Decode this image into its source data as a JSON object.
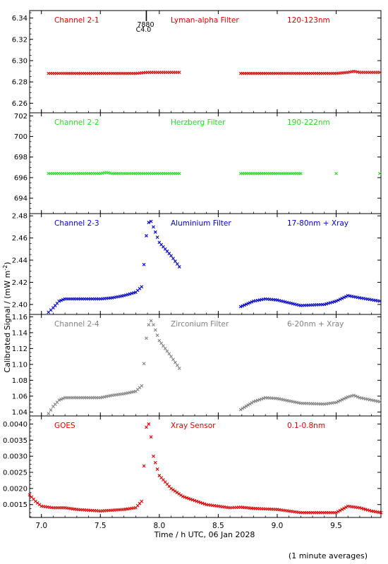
{
  "figure": {
    "ylabel": "Calibrated Signal / (mW m",
    "ylabel_sup": "-2",
    "ylabel_end": ")",
    "xlabel": "Time / h UTC, 06 Jan 2028",
    "footnote": "(1 minute averages)",
    "event_marker": {
      "x": 7.89,
      "label1": "7880",
      "label2": "C4.0"
    }
  },
  "chart_data": [
    {
      "type": "scatter",
      "name": "Channel 2-1",
      "filter": "Lyman-alpha Filter",
      "band": "120-123nm",
      "color": "#dd0000",
      "xlim": [
        6.9,
        9.88
      ],
      "ylim": [
        6.251,
        6.347
      ],
      "yticks": [
        6.26,
        6.28,
        6.3,
        6.32,
        6.34
      ],
      "ytick_labels": [
        "6.26",
        "6.28",
        "6.30",
        "6.32",
        "6.34"
      ],
      "x": [
        7.06,
        7.2,
        7.4,
        7.6,
        7.8,
        7.9,
        8.0,
        8.17,
        8.69,
        8.9,
        9.1,
        9.3,
        9.5,
        9.6,
        9.65,
        9.7,
        9.87
      ],
      "y": [
        6.288,
        6.288,
        6.288,
        6.288,
        6.288,
        6.289,
        6.289,
        6.289,
        6.288,
        6.288,
        6.288,
        6.288,
        6.288,
        6.289,
        6.29,
        6.289,
        6.289
      ]
    },
    {
      "type": "scatter",
      "name": "Channel 2-2",
      "filter": "Herzberg Filter",
      "band": "190-222nm",
      "color": "#22dd22",
      "xlim": [
        6.9,
        9.88
      ],
      "ylim": [
        692.5,
        702.3
      ],
      "yticks": [
        694,
        696,
        698,
        700,
        702
      ],
      "ytick_labels": [
        "694",
        "696",
        "698",
        "700",
        "702"
      ],
      "x": [
        7.06,
        7.3,
        7.5,
        7.55,
        7.6,
        7.8,
        8.0,
        8.17,
        8.69,
        8.9,
        9.2,
        9.5,
        9.87
      ],
      "y": [
        696.4,
        696.4,
        696.4,
        696.5,
        696.4,
        696.4,
        696.4,
        696.4,
        696.4,
        696.4,
        696.4,
        696.4,
        696.4
      ]
    },
    {
      "type": "scatter",
      "name": "Channel 2-3",
      "filter": "Aluminium Filter",
      "band": "17-80nm + Xray",
      "color": "#0000cc",
      "xlim": [
        6.9,
        9.88
      ],
      "ylim": [
        2.391,
        2.482
      ],
      "yticks": [
        2.4,
        2.42,
        2.44,
        2.46,
        2.48
      ],
      "ytick_labels": [
        "2.40",
        "2.42",
        "2.44",
        "2.46",
        "2.48"
      ],
      "x": [
        7.06,
        7.1,
        7.15,
        7.2,
        7.3,
        7.5,
        7.6,
        7.7,
        7.8,
        7.85,
        7.87,
        7.89,
        7.91,
        7.93,
        7.95,
        8.0,
        8.1,
        8.17,
        8.69,
        8.8,
        8.9,
        9.0,
        9.2,
        9.4,
        9.5,
        9.6,
        9.65,
        9.7,
        9.87
      ],
      "y": [
        2.393,
        2.397,
        2.403,
        2.405,
        2.405,
        2.405,
        2.406,
        2.408,
        2.411,
        2.416,
        2.436,
        2.462,
        2.474,
        2.475,
        2.47,
        2.456,
        2.444,
        2.434,
        2.398,
        2.403,
        2.405,
        2.404,
        2.399,
        2.4,
        2.403,
        2.408,
        2.407,
        2.406,
        2.403
      ]
    },
    {
      "type": "scatter",
      "name": "Channel 2-4",
      "filter": "Zirconium Filter",
      "band": "6-20nm + Xray",
      "color": "#808080",
      "xlim": [
        6.9,
        9.88
      ],
      "ylim": [
        1.035,
        1.163
      ],
      "yticks": [
        1.04,
        1.06,
        1.08,
        1.1,
        1.12,
        1.14,
        1.16
      ],
      "ytick_labels": [
        "1.04",
        "1.06",
        "1.08",
        "1.10",
        "1.12",
        "1.14",
        "1.16"
      ],
      "x": [
        7.06,
        7.1,
        7.15,
        7.2,
        7.3,
        7.5,
        7.6,
        7.7,
        7.8,
        7.85,
        7.87,
        7.89,
        7.91,
        7.93,
        7.95,
        8.0,
        8.1,
        8.17,
        8.69,
        8.8,
        8.9,
        9.0,
        9.2,
        9.4,
        9.5,
        9.6,
        9.65,
        9.7,
        9.87
      ],
      "y": [
        1.038,
        1.047,
        1.055,
        1.058,
        1.058,
        1.058,
        1.061,
        1.063,
        1.066,
        1.073,
        1.101,
        1.133,
        1.15,
        1.155,
        1.15,
        1.13,
        1.11,
        1.095,
        1.043,
        1.053,
        1.058,
        1.057,
        1.051,
        1.05,
        1.052,
        1.059,
        1.061,
        1.058,
        1.053
      ]
    },
    {
      "type": "scatter",
      "name": "GOES",
      "filter": "Xray Sensor",
      "band": "0.1-0.8nm",
      "color": "#dd0000",
      "xlim": [
        6.9,
        9.88
      ],
      "ylim": [
        0.0011,
        0.00425
      ],
      "yticks": [
        0.0015,
        0.002,
        0.0025,
        0.003,
        0.0035,
        0.004
      ],
      "ytick_labels": [
        "0.0015",
        "0.0020",
        "0.0025",
        "0.0030",
        "0.0035",
        "0.0040"
      ],
      "x": [
        6.9,
        6.95,
        7.0,
        7.1,
        7.2,
        7.3,
        7.5,
        7.7,
        7.8,
        7.85,
        7.87,
        7.89,
        7.91,
        7.93,
        7.95,
        8.0,
        8.1,
        8.2,
        8.4,
        8.6,
        8.69,
        8.8,
        9.0,
        9.2,
        9.4,
        9.5,
        9.6,
        9.7,
        9.8,
        9.88
      ],
      "y": [
        0.0018,
        0.0016,
        0.00145,
        0.0014,
        0.0014,
        0.00135,
        0.0013,
        0.00135,
        0.0014,
        0.0016,
        0.0027,
        0.0039,
        0.004,
        0.0036,
        0.003,
        0.0024,
        0.002,
        0.00175,
        0.0015,
        0.0014,
        0.00142,
        0.00138,
        0.00135,
        0.00125,
        0.00125,
        0.00125,
        0.00145,
        0.0014,
        0.0013,
        0.00125
      ]
    }
  ],
  "x_axis": {
    "ticks": [
      7.0,
      7.5,
      8.0,
      8.5,
      9.0,
      9.5
    ],
    "labels": [
      "7.0",
      "7.5",
      "8.0",
      "8.5",
      "9.0",
      "9.5"
    ]
  }
}
